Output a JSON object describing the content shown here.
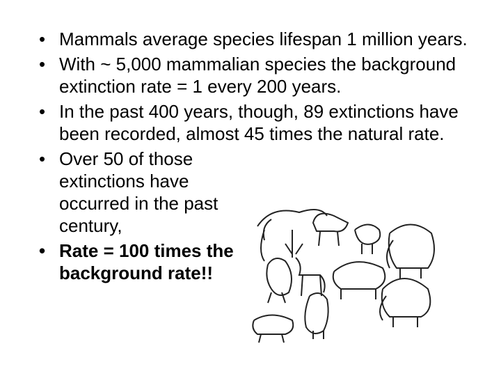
{
  "bullets": [
    "Mammals average species lifespan 1 million years.",
    "With ~ 5,000 mammalian species the background extinction rate = 1 every 200 years.",
    "In the past 400 years, though, 89 extinctions have been recorded, almost 45 times the natural rate.",
    "Over 50 of those extinctions have occurred in the past century,",
    "Rate = 100 times the background rate!!"
  ]
}
